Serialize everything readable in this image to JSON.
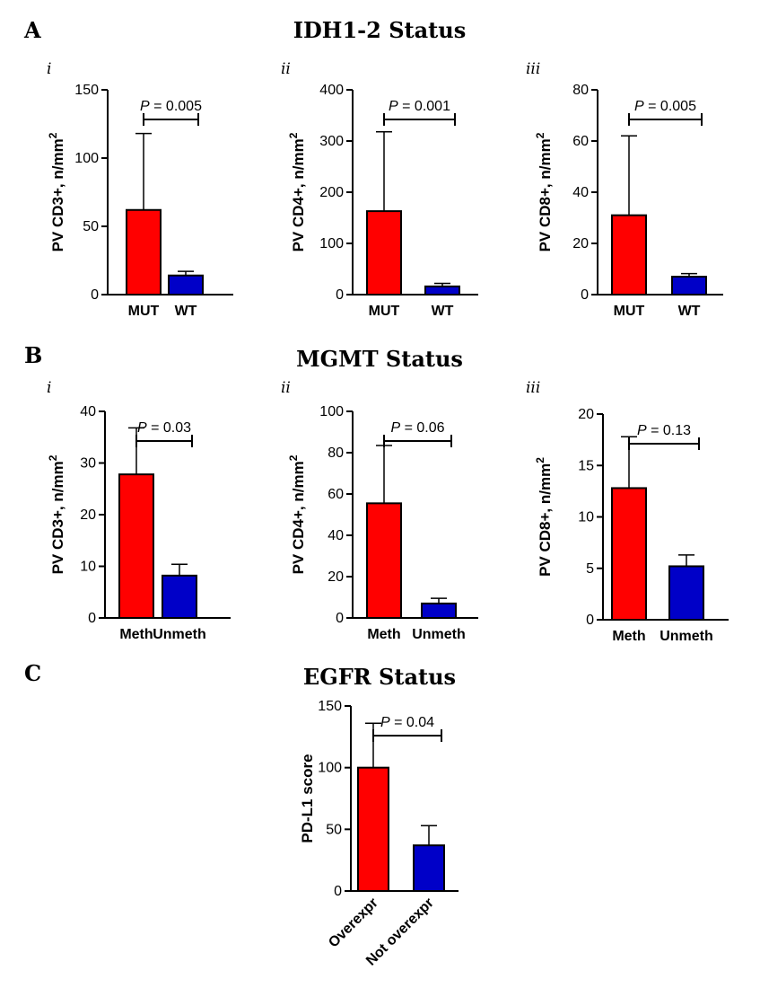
{
  "figure": {
    "sections": [
      {
        "letter": "A",
        "title": "IDH1-2 Status"
      },
      {
        "letter": "B",
        "title": "MGMT Status"
      },
      {
        "letter": "C",
        "title": "EGFR Status"
      }
    ]
  },
  "colors": {
    "group1": "#ff0000",
    "group2": "#0000c8",
    "ink": "#000000"
  },
  "chart_data": [
    {
      "id": "A-i",
      "section": "A",
      "sublabel": "i",
      "type": "bar",
      "categories": [
        "MUT",
        "WT"
      ],
      "values": [
        62,
        14
      ],
      "errors": [
        56,
        3
      ],
      "ylabel_main": "PV CD3+, n/mm",
      "ylabel_sup": "2",
      "ylim": [
        0,
        150
      ],
      "yticks": [
        0,
        50,
        100,
        150
      ],
      "pvalue": {
        "prefix": "P",
        "text": " = 0.005"
      }
    },
    {
      "id": "A-ii",
      "section": "A",
      "sublabel": "ii",
      "type": "bar",
      "categories": [
        "MUT",
        "WT"
      ],
      "values": [
        163,
        16
      ],
      "errors": [
        155,
        6
      ],
      "ylabel_main": "PV CD4+, n/mm",
      "ylabel_sup": "2",
      "ylim": [
        0,
        400
      ],
      "yticks": [
        0,
        100,
        200,
        300,
        400
      ],
      "pvalue": {
        "prefix": "P",
        "text": " = 0.001"
      }
    },
    {
      "id": "A-iii",
      "section": "A",
      "sublabel": "iii",
      "type": "bar",
      "categories": [
        "MUT",
        "WT"
      ],
      "values": [
        31,
        7
      ],
      "errors": [
        31,
        1.2
      ],
      "ylabel_main": "PV CD8+, n/mm",
      "ylabel_sup": "2",
      "ylim": [
        0,
        80
      ],
      "yticks": [
        0,
        20,
        40,
        60,
        80
      ],
      "pvalue": {
        "prefix": "P",
        "text": " = 0.005"
      }
    },
    {
      "id": "B-i",
      "section": "B",
      "sublabel": "i",
      "type": "bar",
      "categories": [
        "Meth",
        "Unmeth"
      ],
      "values": [
        27.8,
        8.2
      ],
      "errors": [
        9,
        2.2
      ],
      "ylabel_main": "PV CD3+, n/mm",
      "ylabel_sup": "2",
      "ylim": [
        0,
        40
      ],
      "yticks": [
        0,
        10,
        20,
        30,
        40
      ],
      "pvalue": {
        "prefix": "P",
        "text": " = 0.03"
      }
    },
    {
      "id": "B-ii",
      "section": "B",
      "sublabel": "ii",
      "type": "bar",
      "categories": [
        "Meth",
        "Unmeth"
      ],
      "values": [
        55.5,
        7
      ],
      "errors": [
        28,
        2.5
      ],
      "ylabel_main": "PV CD4+, n/mm",
      "ylabel_sup": "2",
      "ylim": [
        0,
        100
      ],
      "yticks": [
        0,
        20,
        40,
        60,
        80,
        100
      ],
      "pvalue": {
        "prefix": "P",
        "text": " = 0.06"
      }
    },
    {
      "id": "B-iii",
      "section": "B",
      "sublabel": "iii",
      "type": "bar",
      "categories": [
        "Meth",
        "Unmeth"
      ],
      "values": [
        12.8,
        5.2
      ],
      "errors": [
        5,
        1.1
      ],
      "ylabel_main": "PV CD8+, n/mm",
      "ylabel_sup": "2",
      "ylim": [
        0,
        20
      ],
      "yticks": [
        0,
        5,
        10,
        15,
        20
      ],
      "pvalue": {
        "prefix": "P",
        "text": " = 0.13"
      }
    },
    {
      "id": "C",
      "section": "C",
      "sublabel": "",
      "type": "bar",
      "categories": [
        "Overexpr",
        "Not overexpr"
      ],
      "values": [
        100,
        37
      ],
      "errors": [
        36,
        16
      ],
      "ylabel_main": "PD-L1 score",
      "ylabel_sup": "",
      "ylim": [
        0,
        150
      ],
      "yticks": [
        0,
        50,
        100,
        150
      ],
      "pvalue": {
        "prefix": "P",
        "text": " = 0.04"
      }
    }
  ]
}
